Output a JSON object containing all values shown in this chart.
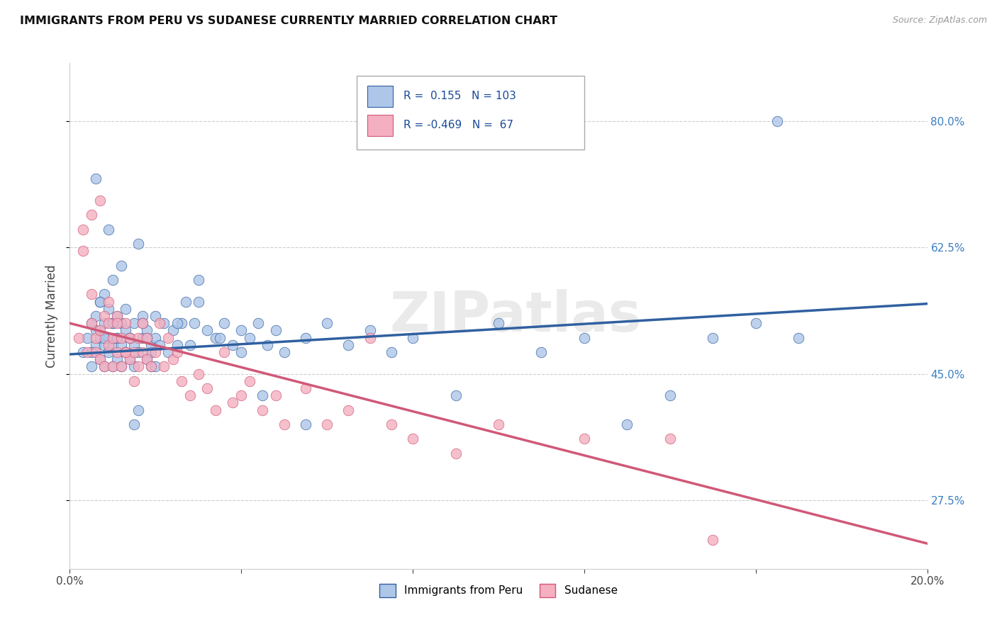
{
  "title": "IMMIGRANTS FROM PERU VS SUDANESE CURRENTLY MARRIED CORRELATION CHART",
  "source": "Source: ZipAtlas.com",
  "ylabel": "Currently Married",
  "legend_label1": "Immigrants from Peru",
  "legend_label2": "Sudanese",
  "R1": 0.155,
  "N1": 103,
  "R2": -0.469,
  "N2": 67,
  "x_min": 0.0,
  "x_max": 0.2,
  "y_min": 0.18,
  "y_max": 0.88,
  "yticks": [
    0.275,
    0.45,
    0.625,
    0.8
  ],
  "ytick_labels": [
    "27.5%",
    "45.0%",
    "62.5%",
    "80.0%"
  ],
  "xticks": [
    0.0,
    0.04,
    0.08,
    0.12,
    0.16,
    0.2
  ],
  "color_blue": "#aec6e8",
  "color_pink": "#f4afc0",
  "line_blue": "#3060a0",
  "line_pink": "#d05878",
  "background": "#ffffff",
  "grid_color": "#cccccc",
  "watermark": "ZIPatlas",
  "blue_trend_x": [
    0.0,
    0.2
  ],
  "blue_trend_y": [
    0.477,
    0.547
  ],
  "pink_trend_x": [
    0.0,
    0.2
  ],
  "pink_trend_y": [
    0.52,
    0.215
  ],
  "blue_points_x": [
    0.003,
    0.004,
    0.005,
    0.005,
    0.006,
    0.006,
    0.006,
    0.007,
    0.007,
    0.007,
    0.008,
    0.008,
    0.008,
    0.008,
    0.009,
    0.009,
    0.009,
    0.01,
    0.01,
    0.01,
    0.01,
    0.011,
    0.011,
    0.011,
    0.012,
    0.012,
    0.012,
    0.013,
    0.013,
    0.013,
    0.014,
    0.014,
    0.015,
    0.015,
    0.015,
    0.016,
    0.016,
    0.017,
    0.017,
    0.018,
    0.018,
    0.019,
    0.019,
    0.02,
    0.02,
    0.021,
    0.022,
    0.023,
    0.024,
    0.025,
    0.026,
    0.027,
    0.028,
    0.029,
    0.03,
    0.032,
    0.034,
    0.036,
    0.038,
    0.04,
    0.042,
    0.044,
    0.046,
    0.048,
    0.05,
    0.055,
    0.06,
    0.065,
    0.07,
    0.075,
    0.08,
    0.09,
    0.1,
    0.11,
    0.12,
    0.13,
    0.14,
    0.15,
    0.16,
    0.17,
    0.005,
    0.006,
    0.007,
    0.008,
    0.009,
    0.01,
    0.011,
    0.012,
    0.013,
    0.014,
    0.015,
    0.016,
    0.017,
    0.018,
    0.019,
    0.02,
    0.025,
    0.03,
    0.035,
    0.04,
    0.045,
    0.055,
    0.165
  ],
  "blue_points_y": [
    0.48,
    0.5,
    0.52,
    0.46,
    0.49,
    0.51,
    0.53,
    0.47,
    0.5,
    0.55,
    0.46,
    0.49,
    0.52,
    0.56,
    0.48,
    0.5,
    0.54,
    0.46,
    0.49,
    0.52,
    0.58,
    0.47,
    0.5,
    0.53,
    0.46,
    0.49,
    0.52,
    0.48,
    0.51,
    0.54,
    0.47,
    0.5,
    0.46,
    0.49,
    0.52,
    0.48,
    0.63,
    0.5,
    0.53,
    0.47,
    0.51,
    0.49,
    0.46,
    0.5,
    0.53,
    0.49,
    0.52,
    0.48,
    0.51,
    0.49,
    0.52,
    0.55,
    0.49,
    0.52,
    0.58,
    0.51,
    0.5,
    0.52,
    0.49,
    0.51,
    0.5,
    0.52,
    0.49,
    0.51,
    0.48,
    0.5,
    0.52,
    0.49,
    0.51,
    0.48,
    0.5,
    0.42,
    0.52,
    0.48,
    0.5,
    0.38,
    0.42,
    0.5,
    0.52,
    0.5,
    0.48,
    0.72,
    0.55,
    0.5,
    0.65,
    0.52,
    0.5,
    0.6,
    0.48,
    0.5,
    0.38,
    0.4,
    0.52,
    0.5,
    0.48,
    0.46,
    0.52,
    0.55,
    0.5,
    0.48,
    0.42,
    0.38,
    0.8
  ],
  "pink_points_x": [
    0.002,
    0.003,
    0.004,
    0.005,
    0.005,
    0.006,
    0.006,
    0.007,
    0.007,
    0.008,
    0.008,
    0.009,
    0.009,
    0.01,
    0.01,
    0.011,
    0.011,
    0.012,
    0.012,
    0.013,
    0.013,
    0.014,
    0.014,
    0.015,
    0.015,
    0.016,
    0.016,
    0.017,
    0.017,
    0.018,
    0.018,
    0.019,
    0.02,
    0.021,
    0.022,
    0.023,
    0.024,
    0.025,
    0.026,
    0.028,
    0.03,
    0.032,
    0.034,
    0.036,
    0.038,
    0.04,
    0.042,
    0.045,
    0.048,
    0.05,
    0.055,
    0.06,
    0.065,
    0.07,
    0.075,
    0.08,
    0.09,
    0.1,
    0.12,
    0.14,
    0.003,
    0.005,
    0.007,
    0.009,
    0.011,
    0.013,
    0.15
  ],
  "pink_points_y": [
    0.5,
    0.62,
    0.48,
    0.52,
    0.56,
    0.48,
    0.5,
    0.47,
    0.51,
    0.53,
    0.46,
    0.49,
    0.52,
    0.46,
    0.5,
    0.48,
    0.53,
    0.46,
    0.5,
    0.48,
    0.52,
    0.47,
    0.5,
    0.44,
    0.48,
    0.46,
    0.5,
    0.48,
    0.52,
    0.47,
    0.5,
    0.46,
    0.48,
    0.52,
    0.46,
    0.5,
    0.47,
    0.48,
    0.44,
    0.42,
    0.45,
    0.43,
    0.4,
    0.48,
    0.41,
    0.42,
    0.44,
    0.4,
    0.42,
    0.38,
    0.43,
    0.38,
    0.4,
    0.5,
    0.38,
    0.36,
    0.34,
    0.38,
    0.36,
    0.36,
    0.65,
    0.67,
    0.69,
    0.55,
    0.52,
    0.48,
    0.22
  ]
}
